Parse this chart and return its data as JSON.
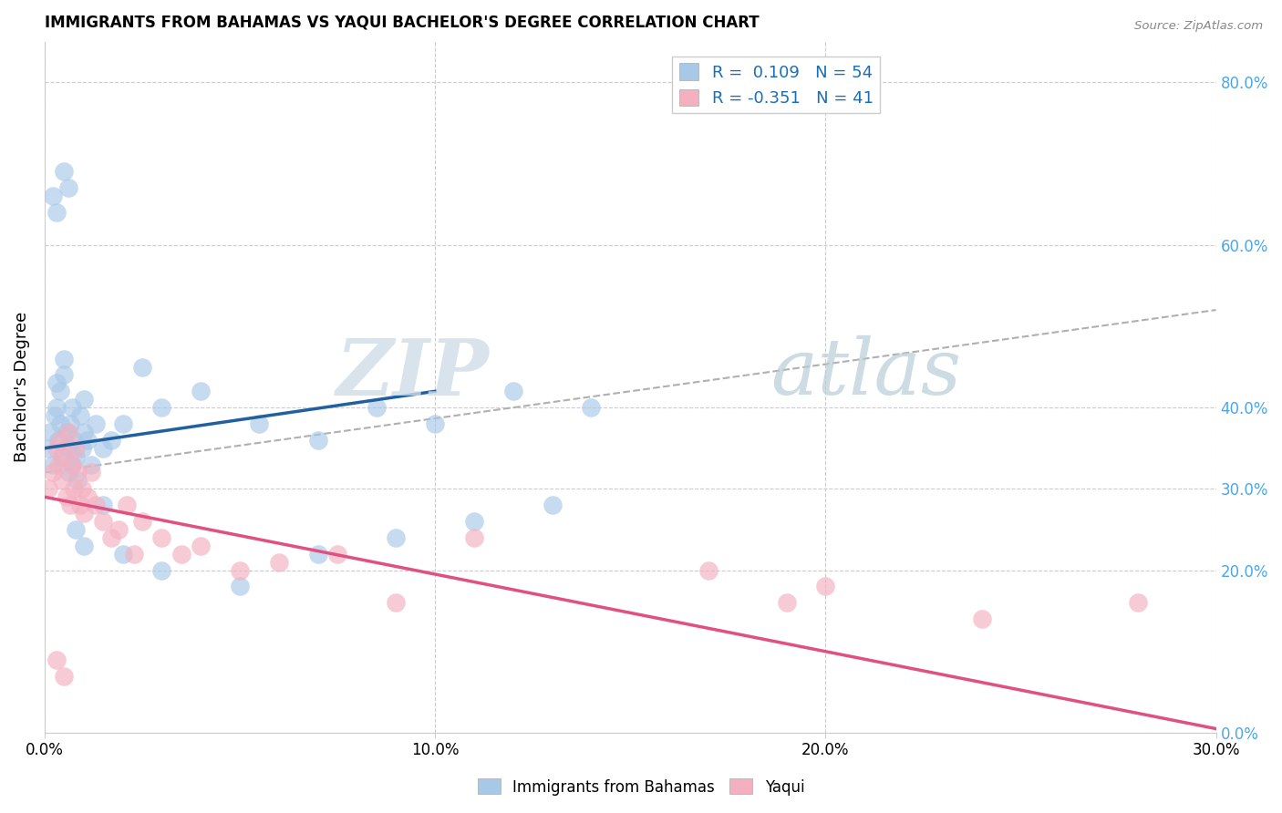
{
  "title": "IMMIGRANTS FROM BAHAMAS VS YAQUI BACHELOR'S DEGREE CORRELATION CHART",
  "source_text": "Source: ZipAtlas.com",
  "ylabel": "Bachelor's Degree",
  "xlim": [
    0.0,
    30.0
  ],
  "ylim": [
    0.0,
    85.0
  ],
  "watermark_line1": "ZIP",
  "watermark_line2": "atlas",
  "legend_label1": "R =  0.109   N = 54",
  "legend_label2": "R = -0.351   N = 41",
  "color_blue": "#a8c8e8",
  "color_pink": "#f4b0c0",
  "color_blue_line": "#2060a0",
  "color_pink_line": "#e05080",
  "color_gray_dashed": "#b0b0b0",
  "blue_scatter_x": [
    0.1,
    0.15,
    0.2,
    0.25,
    0.3,
    0.3,
    0.35,
    0.4,
    0.4,
    0.45,
    0.5,
    0.5,
    0.55,
    0.6,
    0.6,
    0.65,
    0.7,
    0.7,
    0.75,
    0.8,
    0.85,
    0.9,
    0.95,
    1.0,
    1.0,
    1.1,
    1.2,
    1.3,
    1.5,
    1.7,
    2.0,
    2.5,
    3.0,
    4.0,
    5.5,
    7.0,
    8.5,
    10.0,
    12.0,
    14.0,
    0.2,
    0.3,
    0.5,
    0.6,
    0.8,
    1.0,
    1.5,
    2.0,
    3.0,
    5.0,
    7.0,
    9.0,
    11.0,
    13.0
  ],
  "blue_scatter_y": [
    35.0,
    37.0,
    33.0,
    39.0,
    40.0,
    43.0,
    36.0,
    42.0,
    38.0,
    34.0,
    44.0,
    46.0,
    37.0,
    35.0,
    32.0,
    38.0,
    40.0,
    33.0,
    36.0,
    34.0,
    31.0,
    39.0,
    35.0,
    37.0,
    41.0,
    36.0,
    33.0,
    38.0,
    35.0,
    36.0,
    38.0,
    45.0,
    40.0,
    42.0,
    38.0,
    36.0,
    40.0,
    38.0,
    42.0,
    40.0,
    66.0,
    64.0,
    69.0,
    67.0,
    25.0,
    23.0,
    28.0,
    22.0,
    20.0,
    18.0,
    22.0,
    24.0,
    26.0,
    28.0
  ],
  "pink_scatter_x": [
    0.1,
    0.2,
    0.3,
    0.35,
    0.4,
    0.45,
    0.5,
    0.55,
    0.6,
    0.65,
    0.7,
    0.75,
    0.8,
    0.85,
    0.9,
    0.95,
    1.0,
    1.1,
    1.2,
    1.3,
    1.5,
    1.7,
    1.9,
    2.1,
    2.3,
    2.5,
    3.0,
    3.5,
    4.0,
    5.0,
    6.0,
    7.5,
    9.0,
    11.0,
    17.0,
    19.0,
    20.0,
    24.0,
    28.0,
    0.3,
    0.5
  ],
  "pink_scatter_y": [
    30.0,
    32.0,
    35.0,
    33.0,
    36.0,
    31.0,
    34.0,
    29.0,
    37.0,
    28.0,
    33.0,
    30.0,
    35.0,
    32.0,
    28.0,
    30.0,
    27.0,
    29.0,
    32.0,
    28.0,
    26.0,
    24.0,
    25.0,
    28.0,
    22.0,
    26.0,
    24.0,
    22.0,
    23.0,
    20.0,
    21.0,
    22.0,
    16.0,
    24.0,
    20.0,
    16.0,
    18.0,
    14.0,
    16.0,
    9.0,
    7.0
  ],
  "blue_trend": [
    0.0,
    10.0,
    35.0,
    42.0
  ],
  "pink_trend": [
    0.0,
    30.0,
    29.0,
    0.5
  ],
  "gray_trend": [
    0.0,
    30.0,
    32.0,
    52.0
  ],
  "x_ticks": [
    0.0,
    10.0,
    20.0,
    30.0
  ],
  "x_tick_labels": [
    "0.0%",
    "10.0%",
    "20.0%",
    "30.0%"
  ],
  "y_right_ticks": [
    0.0,
    20.0,
    30.0,
    40.0,
    60.0,
    80.0
  ],
  "y_right_labels": [
    "0.0%",
    "20.0%",
    "30.0%",
    "40.0%",
    "60.0%",
    "80.0%"
  ]
}
